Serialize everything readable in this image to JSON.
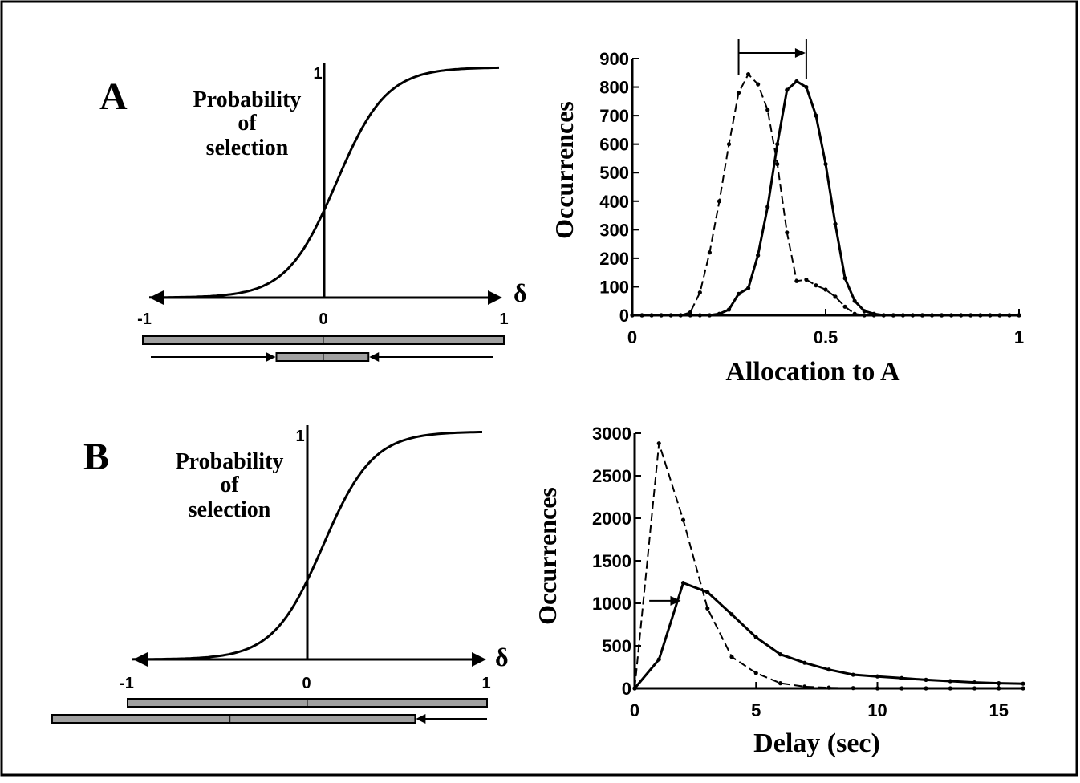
{
  "panels": [
    {
      "letter": "A",
      "sigmoid": {
        "label_lines": [
          "Probability",
          "of",
          "selection"
        ],
        "y_tick": "1",
        "x_axis_symbol": "δ",
        "x_tick_labels": [
          "-1",
          "0",
          "1"
        ],
        "k": 7.0,
        "x0": 0.07
      },
      "range_bars": {
        "full": [
          -1,
          1
        ],
        "shifted": [
          -0.26,
          0.25
        ],
        "shifted_mark": 0,
        "arrows": "converge"
      }
    },
    {
      "letter": "B",
      "sigmoid": {
        "label_lines": [
          "Probability",
          "of",
          "selection"
        ],
        "y_tick": "1",
        "x_axis_symbol": "δ",
        "x_tick_labels": [
          "-1",
          "0",
          "1"
        ],
        "k": 7.0,
        "x0": 0.09
      },
      "range_bars": {
        "full": [
          -1,
          1
        ],
        "shifted": [
          -1.42,
          0.6
        ],
        "shifted_mark": -0.43,
        "arrows": "left"
      }
    }
  ],
  "chart_data": [
    {
      "type": "line",
      "panel": "A",
      "xlabel": "Allocation to A",
      "ylabel": "Occurrences",
      "xlim": [
        0,
        1
      ],
      "ylim": [
        0,
        900
      ],
      "x_ticks": [
        0,
        0.5,
        1
      ],
      "x_tick_labels": [
        "0",
        "0.5",
        "1"
      ],
      "y_ticks": [
        0,
        100,
        200,
        300,
        400,
        500,
        600,
        700,
        800,
        900
      ],
      "x": [
        0,
        0.025,
        0.05,
        0.075,
        0.1,
        0.125,
        0.15,
        0.175,
        0.2,
        0.225,
        0.25,
        0.275,
        0.3,
        0.325,
        0.35,
        0.375,
        0.4,
        0.425,
        0.45,
        0.475,
        0.5,
        0.525,
        0.55,
        0.575,
        0.6,
        0.625,
        0.65,
        0.675,
        0.7,
        0.725,
        0.75,
        0.775,
        0.8,
        0.825,
        0.85,
        0.875,
        0.9,
        0.925,
        0.95,
        0.975,
        1
      ],
      "series": [
        {
          "style": "dashed",
          "values": [
            0,
            0,
            0,
            0,
            0,
            0,
            10,
            80,
            220,
            400,
            600,
            780,
            845,
            810,
            720,
            530,
            290,
            120,
            125,
            105,
            90,
            65,
            30,
            5,
            0,
            0,
            0,
            0,
            0,
            0,
            0,
            0,
            0,
            0,
            0,
            0,
            0,
            0,
            0,
            0,
            0
          ]
        },
        {
          "style": "solid",
          "values": [
            0,
            0,
            0,
            0,
            0,
            0,
            0,
            0,
            0,
            5,
            20,
            75,
            95,
            210,
            380,
            600,
            790,
            820,
            800,
            700,
            530,
            320,
            130,
            50,
            15,
            5,
            0,
            0,
            0,
            0,
            0,
            0,
            0,
            0,
            0,
            0,
            0,
            0,
            0,
            0,
            0
          ]
        }
      ],
      "shift_arrow": {
        "from_x": 0.275,
        "to_x": 0.45
      }
    },
    {
      "type": "line",
      "panel": "B",
      "xlabel": "Delay (sec)",
      "ylabel": "Occurrences",
      "xlim": [
        0,
        16
      ],
      "ylim": [
        0,
        3000
      ],
      "x_ticks": [
        0,
        5,
        10,
        15
      ],
      "x_tick_labels": [
        "0",
        "5",
        "10",
        "15"
      ],
      "y_ticks": [
        0,
        500,
        1000,
        1500,
        2000,
        2500,
        3000
      ],
      "x": [
        0,
        1,
        2,
        3,
        4,
        5,
        6,
        7,
        8,
        9,
        10,
        11,
        12,
        13,
        14,
        15,
        16
      ],
      "series": [
        {
          "style": "dashed",
          "values": [
            0,
            2880,
            1980,
            940,
            370,
            180,
            60,
            20,
            8,
            3,
            0,
            0,
            0,
            0,
            0,
            0,
            0
          ]
        },
        {
          "style": "solid",
          "values": [
            0,
            340,
            1240,
            1130,
            870,
            600,
            400,
            300,
            220,
            160,
            140,
            120,
            100,
            85,
            70,
            60,
            55
          ]
        }
      ],
      "shift_arrow": {
        "from_x": 0.6,
        "to_x": 1.9,
        "at_y": 1030
      }
    }
  ]
}
